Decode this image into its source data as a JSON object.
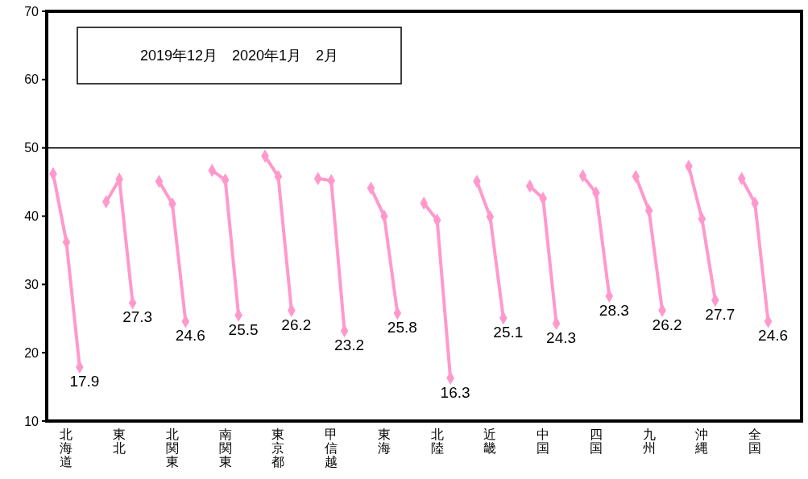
{
  "chart_data": {
    "type": "line",
    "categories": [
      null,
      "北海道",
      null,
      null,
      null,
      "東北",
      null,
      null,
      null,
      "北関東",
      null,
      null,
      null,
      "南関東",
      null,
      null,
      null,
      "東京都",
      null,
      null,
      null,
      "甲信越",
      null,
      null,
      null,
      "東海",
      null,
      null,
      null,
      "北陸",
      null,
      null,
      null,
      "近畿",
      null,
      null,
      null,
      "中国",
      null,
      null,
      null,
      "四国",
      null,
      null,
      null,
      "九州",
      null,
      null,
      null,
      "沖縄",
      null,
      null,
      null,
      "全国",
      null,
      null
    ],
    "ylim": [
      10,
      70
    ],
    "yticks": [
      10,
      20,
      30,
      40,
      50,
      60,
      70
    ],
    "marker": "diamond",
    "line_style": "solid",
    "ref_lines": [
      {
        "axis": "y",
        "value": 50,
        "color": "#000000"
      }
    ],
    "annotations": [
      "2019年12月　2020年1月　2月"
    ],
    "series": [
      {
        "color": "#ff99cc",
        "values": [
          46.2,
          36.2,
          17.9,
          null,
          null,
          null,
          null,
          null,
          null,
          null,
          null,
          null,
          null,
          null,
          null,
          null,
          null,
          null,
          null,
          null,
          null,
          null,
          null,
          null,
          null,
          null,
          null,
          null,
          null,
          null,
          null,
          null,
          null,
          null,
          null,
          null,
          null,
          null,
          null,
          null,
          null,
          null,
          null,
          null,
          null,
          null,
          null,
          null,
          null,
          null,
          null,
          null,
          null,
          null,
          null,
          null
        ],
        "value_labels": [
          null,
          null,
          "17.9",
          null,
          null,
          null,
          null,
          null,
          null,
          null,
          null,
          null,
          null,
          null,
          null,
          null,
          null,
          null,
          null,
          null,
          null,
          null,
          null,
          null,
          null,
          null,
          null,
          null,
          null,
          null,
          null,
          null,
          null,
          null,
          null,
          null,
          null,
          null,
          null,
          null,
          null,
          null,
          null,
          null,
          null,
          null,
          null,
          null,
          null,
          null,
          null,
          null,
          null,
          null,
          null,
          null
        ]
      },
      {
        "color": "#ff99cc",
        "values": [
          null,
          null,
          null,
          null,
          42.1,
          45.4,
          27.3,
          null,
          null,
          null,
          null,
          null,
          null,
          null,
          null,
          null,
          null,
          null,
          null,
          null,
          null,
          null,
          null,
          null,
          null,
          null,
          null,
          null,
          null,
          null,
          null,
          null,
          null,
          null,
          null,
          null,
          null,
          null,
          null,
          null,
          null,
          null,
          null,
          null,
          null,
          null,
          null,
          null,
          null,
          null,
          null,
          null,
          null,
          null,
          null,
          null
        ],
        "value_labels": [
          null,
          null,
          null,
          null,
          null,
          null,
          "27.3",
          null,
          null,
          null,
          null,
          null,
          null,
          null,
          null,
          null,
          null,
          null,
          null,
          null,
          null,
          null,
          null,
          null,
          null,
          null,
          null,
          null,
          null,
          null,
          null,
          null,
          null,
          null,
          null,
          null,
          null,
          null,
          null,
          null,
          null,
          null,
          null,
          null,
          null,
          null,
          null,
          null,
          null,
          null,
          null,
          null,
          null,
          null,
          null,
          null
        ]
      },
      {
        "color": "#ff99cc",
        "values": [
          null,
          null,
          null,
          null,
          null,
          null,
          null,
          null,
          45.1,
          41.8,
          24.6,
          null,
          null,
          null,
          null,
          null,
          null,
          null,
          null,
          null,
          null,
          null,
          null,
          null,
          null,
          null,
          null,
          null,
          null,
          null,
          null,
          null,
          null,
          null,
          null,
          null,
          null,
          null,
          null,
          null,
          null,
          null,
          null,
          null,
          null,
          null,
          null,
          null,
          null,
          null,
          null,
          null,
          null,
          null,
          null,
          null
        ],
        "value_labels": [
          null,
          null,
          null,
          null,
          null,
          null,
          null,
          null,
          null,
          null,
          "24.6",
          null,
          null,
          null,
          null,
          null,
          null,
          null,
          null,
          null,
          null,
          null,
          null,
          null,
          null,
          null,
          null,
          null,
          null,
          null,
          null,
          null,
          null,
          null,
          null,
          null,
          null,
          null,
          null,
          null,
          null,
          null,
          null,
          null,
          null,
          null,
          null,
          null,
          null,
          null,
          null,
          null,
          null,
          null,
          null,
          null
        ]
      },
      {
        "color": "#ff99cc",
        "values": [
          null,
          null,
          null,
          null,
          null,
          null,
          null,
          null,
          null,
          null,
          null,
          null,
          46.7,
          45.3,
          25.5,
          null,
          null,
          null,
          null,
          null,
          null,
          null,
          null,
          null,
          null,
          null,
          null,
          null,
          null,
          null,
          null,
          null,
          null,
          null,
          null,
          null,
          null,
          null,
          null,
          null,
          null,
          null,
          null,
          null,
          null,
          null,
          null,
          null,
          null,
          null,
          null,
          null,
          null,
          null,
          null,
          null
        ],
        "value_labels": [
          null,
          null,
          null,
          null,
          null,
          null,
          null,
          null,
          null,
          null,
          null,
          null,
          null,
          null,
          "25.5",
          null,
          null,
          null,
          null,
          null,
          null,
          null,
          null,
          null,
          null,
          null,
          null,
          null,
          null,
          null,
          null,
          null,
          null,
          null,
          null,
          null,
          null,
          null,
          null,
          null,
          null,
          null,
          null,
          null,
          null,
          null,
          null,
          null,
          null,
          null,
          null,
          null,
          null,
          null,
          null,
          null
        ]
      },
      {
        "color": "#ff99cc",
        "values": [
          null,
          null,
          null,
          null,
          null,
          null,
          null,
          null,
          null,
          null,
          null,
          null,
          null,
          null,
          null,
          null,
          48.8,
          45.8,
          26.2,
          null,
          null,
          null,
          null,
          null,
          null,
          null,
          null,
          null,
          null,
          null,
          null,
          null,
          null,
          null,
          null,
          null,
          null,
          null,
          null,
          null,
          null,
          null,
          null,
          null,
          null,
          null,
          null,
          null,
          null,
          null,
          null,
          null,
          null,
          null,
          null,
          null
        ],
        "value_labels": [
          null,
          null,
          null,
          null,
          null,
          null,
          null,
          null,
          null,
          null,
          null,
          null,
          null,
          null,
          null,
          null,
          null,
          null,
          "26.2",
          null,
          null,
          null,
          null,
          null,
          null,
          null,
          null,
          null,
          null,
          null,
          null,
          null,
          null,
          null,
          null,
          null,
          null,
          null,
          null,
          null,
          null,
          null,
          null,
          null,
          null,
          null,
          null,
          null,
          null,
          null,
          null,
          null,
          null,
          null,
          null,
          null
        ]
      },
      {
        "color": "#ff99cc",
        "values": [
          null,
          null,
          null,
          null,
          null,
          null,
          null,
          null,
          null,
          null,
          null,
          null,
          null,
          null,
          null,
          null,
          null,
          null,
          null,
          null,
          45.5,
          45.2,
          23.2,
          null,
          null,
          null,
          null,
          null,
          null,
          null,
          null,
          null,
          null,
          null,
          null,
          null,
          null,
          null,
          null,
          null,
          null,
          null,
          null,
          null,
          null,
          null,
          null,
          null,
          null,
          null,
          null,
          null,
          null,
          null,
          null,
          null
        ],
        "value_labels": [
          null,
          null,
          null,
          null,
          null,
          null,
          null,
          null,
          null,
          null,
          null,
          null,
          null,
          null,
          null,
          null,
          null,
          null,
          null,
          null,
          null,
          null,
          "23.2",
          null,
          null,
          null,
          null,
          null,
          null,
          null,
          null,
          null,
          null,
          null,
          null,
          null,
          null,
          null,
          null,
          null,
          null,
          null,
          null,
          null,
          null,
          null,
          null,
          null,
          null,
          null,
          null,
          null,
          null,
          null,
          null,
          null
        ]
      },
      {
        "color": "#ff99cc",
        "values": [
          null,
          null,
          null,
          null,
          null,
          null,
          null,
          null,
          null,
          null,
          null,
          null,
          null,
          null,
          null,
          null,
          null,
          null,
          null,
          null,
          null,
          null,
          null,
          null,
          44.1,
          40.0,
          25.8,
          null,
          null,
          null,
          null,
          null,
          null,
          null,
          null,
          null,
          null,
          null,
          null,
          null,
          null,
          null,
          null,
          null,
          null,
          null,
          null,
          null,
          null,
          null,
          null,
          null,
          null,
          null,
          null,
          null
        ],
        "value_labels": [
          null,
          null,
          null,
          null,
          null,
          null,
          null,
          null,
          null,
          null,
          null,
          null,
          null,
          null,
          null,
          null,
          null,
          null,
          null,
          null,
          null,
          null,
          null,
          null,
          null,
          null,
          "25.8",
          null,
          null,
          null,
          null,
          null,
          null,
          null,
          null,
          null,
          null,
          null,
          null,
          null,
          null,
          null,
          null,
          null,
          null,
          null,
          null,
          null,
          null,
          null,
          null,
          null,
          null,
          null,
          null,
          null
        ]
      },
      {
        "color": "#ff99cc",
        "values": [
          null,
          null,
          null,
          null,
          null,
          null,
          null,
          null,
          null,
          null,
          null,
          null,
          null,
          null,
          null,
          null,
          null,
          null,
          null,
          null,
          null,
          null,
          null,
          null,
          null,
          null,
          null,
          null,
          41.9,
          39.4,
          16.3,
          null,
          null,
          null,
          null,
          null,
          null,
          null,
          null,
          null,
          null,
          null,
          null,
          null,
          null,
          null,
          null,
          null,
          null,
          null,
          null,
          null,
          null,
          null,
          null,
          null
        ],
        "value_labels": [
          null,
          null,
          null,
          null,
          null,
          null,
          null,
          null,
          null,
          null,
          null,
          null,
          null,
          null,
          null,
          null,
          null,
          null,
          null,
          null,
          null,
          null,
          null,
          null,
          null,
          null,
          null,
          null,
          null,
          null,
          "16.3",
          null,
          null,
          null,
          null,
          null,
          null,
          null,
          null,
          null,
          null,
          null,
          null,
          null,
          null,
          null,
          null,
          null,
          null,
          null,
          null,
          null,
          null,
          null,
          null,
          null
        ]
      },
      {
        "color": "#ff99cc",
        "values": [
          null,
          null,
          null,
          null,
          null,
          null,
          null,
          null,
          null,
          null,
          null,
          null,
          null,
          null,
          null,
          null,
          null,
          null,
          null,
          null,
          null,
          null,
          null,
          null,
          null,
          null,
          null,
          null,
          null,
          null,
          null,
          null,
          45.1,
          39.9,
          25.1,
          null,
          null,
          null,
          null,
          null,
          null,
          null,
          null,
          null,
          null,
          null,
          null,
          null,
          null,
          null,
          null,
          null,
          null,
          null,
          null,
          null
        ],
        "value_labels": [
          null,
          null,
          null,
          null,
          null,
          null,
          null,
          null,
          null,
          null,
          null,
          null,
          null,
          null,
          null,
          null,
          null,
          null,
          null,
          null,
          null,
          null,
          null,
          null,
          null,
          null,
          null,
          null,
          null,
          null,
          null,
          null,
          null,
          null,
          "25.1",
          null,
          null,
          null,
          null,
          null,
          null,
          null,
          null,
          null,
          null,
          null,
          null,
          null,
          null,
          null,
          null,
          null,
          null,
          null,
          null,
          null
        ]
      },
      {
        "color": "#ff99cc",
        "values": [
          null,
          null,
          null,
          null,
          null,
          null,
          null,
          null,
          null,
          null,
          null,
          null,
          null,
          null,
          null,
          null,
          null,
          null,
          null,
          null,
          null,
          null,
          null,
          null,
          null,
          null,
          null,
          null,
          null,
          null,
          null,
          null,
          null,
          null,
          null,
          null,
          44.4,
          42.6,
          24.3,
          null,
          null,
          null,
          null,
          null,
          null,
          null,
          null,
          null,
          null,
          null,
          null,
          null,
          null,
          null,
          null,
          null
        ],
        "value_labels": [
          null,
          null,
          null,
          null,
          null,
          null,
          null,
          null,
          null,
          null,
          null,
          null,
          null,
          null,
          null,
          null,
          null,
          null,
          null,
          null,
          null,
          null,
          null,
          null,
          null,
          null,
          null,
          null,
          null,
          null,
          null,
          null,
          null,
          null,
          null,
          null,
          null,
          null,
          "24.3",
          null,
          null,
          null,
          null,
          null,
          null,
          null,
          null,
          null,
          null,
          null,
          null,
          null,
          null,
          null,
          null,
          null
        ]
      },
      {
        "color": "#ff99cc",
        "values": [
          null,
          null,
          null,
          null,
          null,
          null,
          null,
          null,
          null,
          null,
          null,
          null,
          null,
          null,
          null,
          null,
          null,
          null,
          null,
          null,
          null,
          null,
          null,
          null,
          null,
          null,
          null,
          null,
          null,
          null,
          null,
          null,
          null,
          null,
          null,
          null,
          null,
          null,
          null,
          null,
          45.9,
          43.4,
          28.3,
          null,
          null,
          null,
          null,
          null,
          null,
          null,
          null,
          null,
          null,
          null,
          null,
          null
        ],
        "value_labels": [
          null,
          null,
          null,
          null,
          null,
          null,
          null,
          null,
          null,
          null,
          null,
          null,
          null,
          null,
          null,
          null,
          null,
          null,
          null,
          null,
          null,
          null,
          null,
          null,
          null,
          null,
          null,
          null,
          null,
          null,
          null,
          null,
          null,
          null,
          null,
          null,
          null,
          null,
          null,
          null,
          null,
          null,
          "28.3",
          null,
          null,
          null,
          null,
          null,
          null,
          null,
          null,
          null,
          null,
          null,
          null,
          null
        ]
      },
      {
        "color": "#ff99cc",
        "values": [
          null,
          null,
          null,
          null,
          null,
          null,
          null,
          null,
          null,
          null,
          null,
          null,
          null,
          null,
          null,
          null,
          null,
          null,
          null,
          null,
          null,
          null,
          null,
          null,
          null,
          null,
          null,
          null,
          null,
          null,
          null,
          null,
          null,
          null,
          null,
          null,
          null,
          null,
          null,
          null,
          null,
          null,
          null,
          null,
          45.8,
          40.8,
          26.2,
          null,
          null,
          null,
          null,
          null,
          null,
          null,
          null,
          null
        ],
        "value_labels": [
          null,
          null,
          null,
          null,
          null,
          null,
          null,
          null,
          null,
          null,
          null,
          null,
          null,
          null,
          null,
          null,
          null,
          null,
          null,
          null,
          null,
          null,
          null,
          null,
          null,
          null,
          null,
          null,
          null,
          null,
          null,
          null,
          null,
          null,
          null,
          null,
          null,
          null,
          null,
          null,
          null,
          null,
          null,
          null,
          null,
          null,
          "26.2",
          null,
          null,
          null,
          null,
          null,
          null,
          null,
          null,
          null
        ]
      },
      {
        "color": "#ff99cc",
        "values": [
          null,
          null,
          null,
          null,
          null,
          null,
          null,
          null,
          null,
          null,
          null,
          null,
          null,
          null,
          null,
          null,
          null,
          null,
          null,
          null,
          null,
          null,
          null,
          null,
          null,
          null,
          null,
          null,
          null,
          null,
          null,
          null,
          null,
          null,
          null,
          null,
          null,
          null,
          null,
          null,
          null,
          null,
          null,
          null,
          null,
          null,
          null,
          null,
          47.3,
          39.6,
          27.7,
          null,
          null,
          null,
          null,
          null
        ],
        "value_labels": [
          null,
          null,
          null,
          null,
          null,
          null,
          null,
          null,
          null,
          null,
          null,
          null,
          null,
          null,
          null,
          null,
          null,
          null,
          null,
          null,
          null,
          null,
          null,
          null,
          null,
          null,
          null,
          null,
          null,
          null,
          null,
          null,
          null,
          null,
          null,
          null,
          null,
          null,
          null,
          null,
          null,
          null,
          null,
          null,
          null,
          null,
          null,
          null,
          null,
          null,
          "27.7",
          null,
          null,
          null,
          null,
          null
        ]
      },
      {
        "color": "#ff99cc",
        "values": [
          null,
          null,
          null,
          null,
          null,
          null,
          null,
          null,
          null,
          null,
          null,
          null,
          null,
          null,
          null,
          null,
          null,
          null,
          null,
          null,
          null,
          null,
          null,
          null,
          null,
          null,
          null,
          null,
          null,
          null,
          null,
          null,
          null,
          null,
          null,
          null,
          null,
          null,
          null,
          null,
          null,
          null,
          null,
          null,
          null,
          null,
          null,
          null,
          null,
          null,
          null,
          null,
          45.5,
          41.9,
          24.6,
          null
        ],
        "value_labels": [
          null,
          null,
          null,
          null,
          null,
          null,
          null,
          null,
          null,
          null,
          null,
          null,
          null,
          null,
          null,
          null,
          null,
          null,
          null,
          null,
          null,
          null,
          null,
          null,
          null,
          null,
          null,
          null,
          null,
          null,
          null,
          null,
          null,
          null,
          null,
          null,
          null,
          null,
          null,
          null,
          null,
          null,
          null,
          null,
          null,
          null,
          null,
          null,
          null,
          null,
          null,
          null,
          null,
          null,
          "24.6",
          null
        ]
      }
    ]
  }
}
